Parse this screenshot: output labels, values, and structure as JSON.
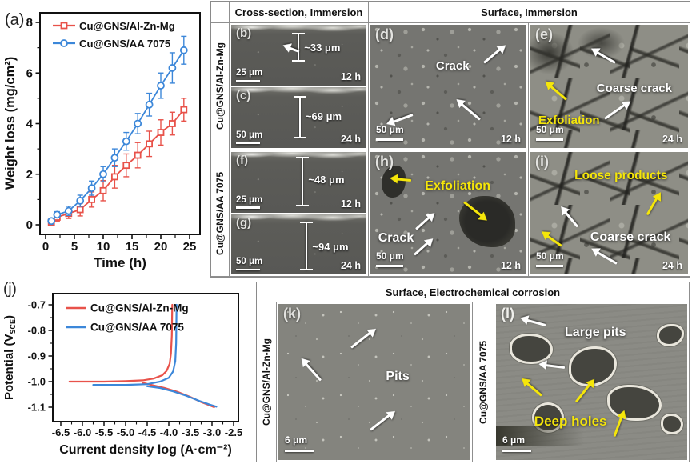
{
  "figure": {
    "panel_a_label": "(a)",
    "panel_j_label": "(j)"
  },
  "colors": {
    "red": "#e8524a",
    "blue": "#3c87d9",
    "annotation_yellow": "#f5e60a",
    "annotation_white": "#ffffff"
  },
  "chart_data": [
    {
      "id": "weight_loss",
      "type": "line",
      "xlabel": "Time (h)",
      "ylabel": "Weight loss (mg/cm²)",
      "xlim": [
        0,
        26.5
      ],
      "ylim": [
        0,
        8
      ],
      "xticks": [
        0,
        5,
        10,
        15,
        20,
        25
      ],
      "yticks": [
        0,
        2,
        4,
        6,
        8
      ],
      "legend_position": "top-left",
      "grid": false,
      "series": [
        {
          "name": "Cu@GNS/Al-Zn-Mg",
          "color": "#e8524a",
          "marker": "square",
          "x": [
            1,
            2,
            4,
            6,
            8,
            10,
            12,
            14,
            16,
            18,
            20,
            22,
            24
          ],
          "y": [
            0.1,
            0.3,
            0.45,
            0.6,
            1.0,
            1.35,
            1.9,
            2.35,
            2.75,
            3.2,
            3.65,
            4.0,
            4.55
          ],
          "err": [
            0.08,
            0.15,
            0.2,
            0.25,
            0.3,
            0.4,
            0.45,
            0.45,
            0.5,
            0.5,
            0.5,
            0.45,
            0.45
          ]
        },
        {
          "name": "Cu@GNS/AA 7075",
          "color": "#3c87d9",
          "marker": "circle",
          "x": [
            1,
            2,
            4,
            6,
            8,
            10,
            12,
            14,
            16,
            18,
            20,
            22,
            24
          ],
          "y": [
            0.15,
            0.4,
            0.55,
            0.95,
            1.45,
            2.0,
            2.65,
            3.3,
            4.0,
            4.75,
            5.5,
            6.2,
            6.9
          ],
          "err": [
            0.08,
            0.12,
            0.18,
            0.22,
            0.28,
            0.3,
            0.35,
            0.35,
            0.4,
            0.45,
            0.5,
            0.6,
            0.55
          ]
        }
      ]
    },
    {
      "id": "polarization",
      "type": "line",
      "xlabel": "Current density log (A·cm⁻²)",
      "ylabel_pre": "Potential (V",
      "ylabel_sub": "SCE",
      "ylabel_post": ")",
      "xlim": [
        -6.75,
        -2.4
      ],
      "ylim": [
        -1.15,
        -0.65
      ],
      "xticks": [
        -6.5,
        -6.0,
        -5.5,
        -5.0,
        -4.5,
        -4.0,
        -3.5,
        -3.0,
        -2.5
      ],
      "yticks": [
        -0.7,
        -0.8,
        -0.9,
        -1.0,
        -1.1
      ],
      "legend_position": "top-left",
      "grid": false,
      "series": [
        {
          "name": "Cu@GNS/Al-Zn-Mg",
          "color": "#e8524a",
          "branches": [
            [
              [
                -6.3,
                -1.0
              ],
              [
                -5.5,
                -1.0
              ],
              [
                -5.0,
                -0.998
              ],
              [
                -4.6,
                -0.995
              ],
              [
                -4.35,
                -0.988
              ],
              [
                -4.15,
                -0.975
              ],
              [
                -4.05,
                -0.958
              ],
              [
                -3.98,
                -0.93
              ],
              [
                -3.95,
                -0.89
              ],
              [
                -3.93,
                -0.82
              ],
              [
                -3.92,
                -0.7
              ]
            ],
            [
              [
                -4.6,
                -1.005
              ],
              [
                -4.35,
                -1.015
              ],
              [
                -4.1,
                -1.025
              ],
              [
                -3.8,
                -1.04
              ],
              [
                -3.5,
                -1.06
              ],
              [
                -3.25,
                -1.08
              ],
              [
                -3.05,
                -1.093
              ],
              [
                -2.95,
                -1.1
              ]
            ]
          ]
        },
        {
          "name": "Cu@GNS/AA 7075",
          "color": "#3c87d9",
          "branches": [
            [
              [
                -5.75,
                -1.013
              ],
              [
                -5.0,
                -1.013
              ],
              [
                -4.5,
                -1.01
              ],
              [
                -4.2,
                -1.0
              ],
              [
                -4.0,
                -0.985
              ],
              [
                -3.9,
                -0.96
              ],
              [
                -3.85,
                -0.92
              ],
              [
                -3.83,
                -0.85
              ],
              [
                -3.82,
                -0.7
              ]
            ],
            [
              [
                -4.5,
                -1.018
              ],
              [
                -4.2,
                -1.025
              ],
              [
                -3.9,
                -1.038
              ],
              [
                -3.6,
                -1.055
              ],
              [
                -3.3,
                -1.075
              ],
              [
                -3.05,
                -1.09
              ],
              [
                -2.9,
                -1.098
              ]
            ]
          ]
        }
      ]
    }
  ],
  "sem_table": {
    "col_headers": [
      "Cross-section, Immersion",
      "Surface, Immersion"
    ],
    "row_labels": [
      "Cu@GNS/Al-Zn-Mg",
      "Cu@GNS/AA 7075"
    ],
    "panels": {
      "b": {
        "letter": "(b)",
        "depth": "~33 μm",
        "scale": "25 μm",
        "time": "12 h"
      },
      "c": {
        "letter": "(c)",
        "depth": "~69 μm",
        "scale": "50 μm",
        "time": "24 h"
      },
      "d": {
        "letter": "(d)",
        "ann1": "Crack",
        "scale": "50 μm",
        "time": "12 h"
      },
      "e": {
        "letter": "(e)",
        "ann1": "Coarse crack",
        "ann2": "Exfoliation",
        "scale": "50 μm",
        "time": "24 h"
      },
      "f": {
        "letter": "(f)",
        "depth": "~48 μm",
        "scale": "25 μm",
        "time": "12 h"
      },
      "g": {
        "letter": "(g)",
        "depth": "~94 μm",
        "scale": "50 μm",
        "time": "24 h"
      },
      "h": {
        "letter": "(h)",
        "ann1": "Crack",
        "ann2": "Exfoliation",
        "scale": "50 μm",
        "time": "12 h"
      },
      "i": {
        "letter": "(i)",
        "ann1": "Coarse crack",
        "ann2": "Loose products",
        "scale": "50 μm",
        "time": "24 h"
      }
    }
  },
  "electro_table": {
    "header": "Surface, Electrochemical corrosion",
    "row_labels": [
      "Cu@GNS/Al-Zn-Mg",
      "Cu@GNS/AA 7075"
    ],
    "panels": {
      "k": {
        "letter": "(k)",
        "ann1": "Pits",
        "scale": "6 μm"
      },
      "l": {
        "letter": "(l)",
        "ann1": "Large pits",
        "ann2": "Deep holes",
        "scale": "6 μm"
      }
    }
  }
}
